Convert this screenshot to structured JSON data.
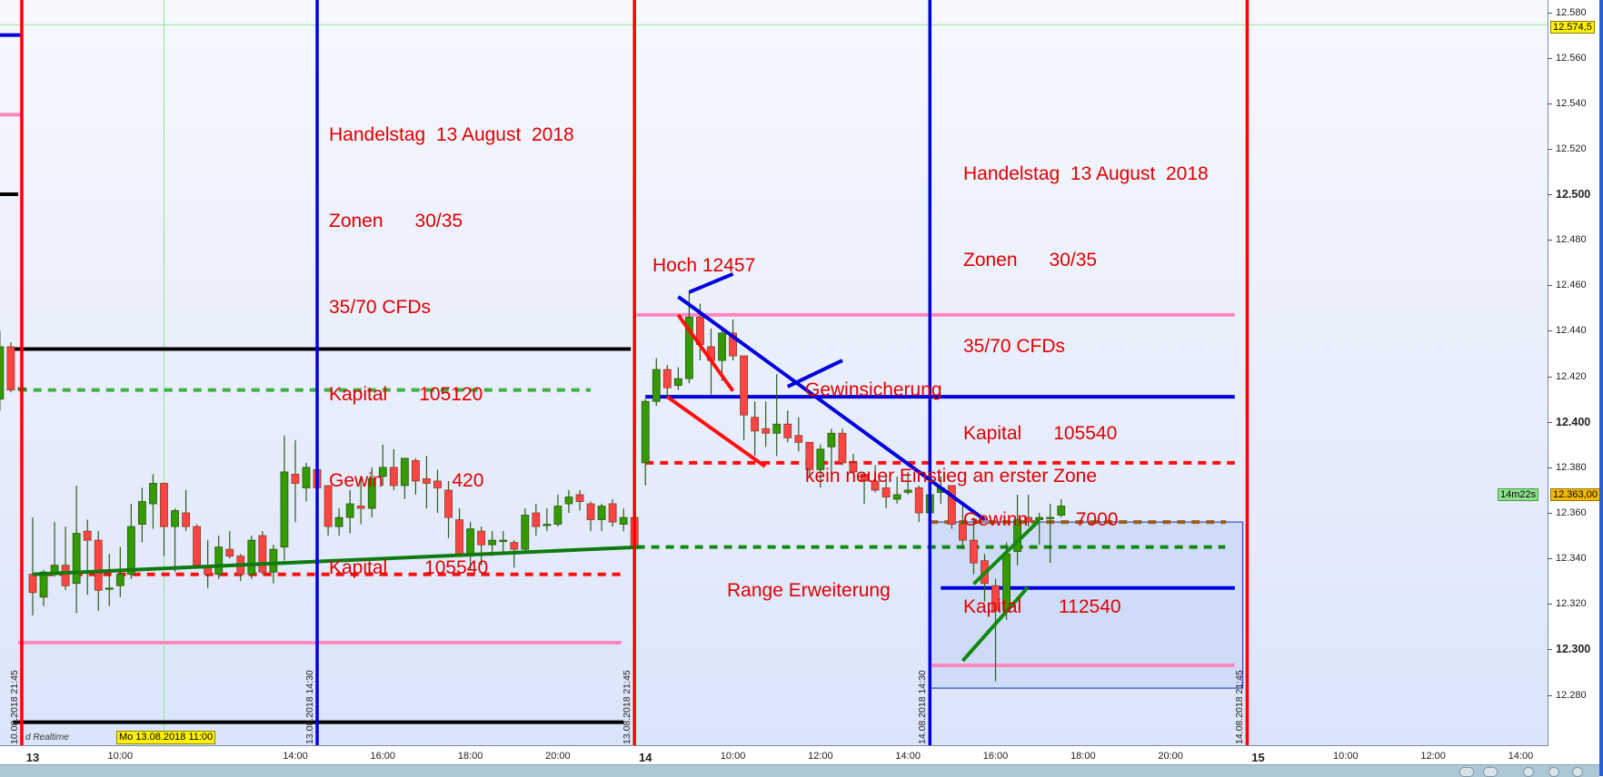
{
  "chart_data": {
    "type": "candlestick",
    "interval": "15m",
    "ylim": [
      12262,
      12585
    ],
    "price_ticks": [
      12280,
      12300,
      12320,
      12340,
      12360,
      12380,
      12400,
      12420,
      12440,
      12460,
      12480,
      12500,
      12520,
      12540,
      12560,
      12580
    ],
    "price_tick_labels": [
      "12.280",
      "12.300",
      "12.320",
      "12.340",
      "12.360",
      "12.380",
      "12.400",
      "12.420",
      "12.440",
      "12.460",
      "12.480",
      "12.500",
      "12.520",
      "12.540",
      "12.560",
      "12.580"
    ],
    "bold_ticks": [
      12300,
      12400,
      12500
    ],
    "time_ticks": [
      {
        "t": "13.08 08:00",
        "label": "13",
        "bold": true
      },
      {
        "t": "13.08 10:00",
        "label": "10:00"
      },
      {
        "t": "13.08 14:00",
        "label": "14:00"
      },
      {
        "t": "13.08 16:00",
        "label": "16:00"
      },
      {
        "t": "13.08 18:00",
        "label": "18:00"
      },
      {
        "t": "13.08 20:00",
        "label": "20:00"
      },
      {
        "t": "14.08 08:00",
        "label": "14",
        "bold": true
      },
      {
        "t": "14.08 10:00",
        "label": "10:00"
      },
      {
        "t": "14.08 12:00",
        "label": "12:00"
      },
      {
        "t": "14.08 14:00",
        "label": "14:00"
      },
      {
        "t": "14.08 16:00",
        "label": "16:00"
      },
      {
        "t": "14.08 18:00",
        "label": "18:00"
      },
      {
        "t": "14.08 20:00",
        "label": "20:00"
      },
      {
        "t": "15.08 08:00",
        "label": "15",
        "bold": true
      },
      {
        "t": "15.08 10:00",
        "label": "10:00"
      },
      {
        "t": "15.08 12:00",
        "label": "12:00"
      },
      {
        "t": "15.08 14:00",
        "label": "14:00"
      }
    ],
    "candles_columns": [
      "time",
      "open",
      "high",
      "low",
      "close"
    ],
    "candles": [
      [
        "10.08 21:15",
        12410,
        12440,
        12405,
        12433
      ],
      [
        "10.08 21:30",
        12433,
        12435,
        12413,
        12414
      ],
      [
        "10.08 21:45",
        12414,
        12416,
        12413,
        12415
      ],
      [
        "13.08 08:00",
        12333,
        12358,
        12315,
        12325
      ],
      [
        "13.08 08:15",
        12323,
        12335,
        12319,
        12334
      ],
      [
        "13.08 08:30",
        12333,
        12356,
        12332,
        12337
      ],
      [
        "13.08 08:45",
        12337,
        12354,
        12326,
        12328
      ],
      [
        "13.08 09:00",
        12329,
        12372,
        12316,
        12351
      ],
      [
        "13.08 09:15",
        12352,
        12357,
        12324,
        12348
      ],
      [
        "13.08 09:30",
        12348,
        12352,
        12317,
        12326
      ],
      [
        "13.08 09:45",
        12327,
        12342,
        12319,
        12327
      ],
      [
        "13.08 10:00",
        12328,
        12345,
        12323,
        12333
      ],
      [
        "13.08 10:15",
        12333,
        12364,
        12331,
        12354
      ],
      [
        "13.08 10:30",
        12355,
        12371,
        12347,
        12365
      ],
      [
        "13.08 10:45",
        12364,
        12377,
        12353,
        12373
      ],
      [
        "13.08 11:00",
        12373,
        12373,
        12341,
        12354
      ],
      [
        "13.08 11:15",
        12354,
        12362,
        12334,
        12361
      ],
      [
        "13.08 11:30",
        12360,
        12370,
        12352,
        12354
      ],
      [
        "13.08 11:45",
        12354,
        12355,
        12336,
        12337
      ],
      [
        "13.08 12:00",
        12336,
        12348,
        12327,
        12333
      ],
      [
        "13.08 12:15",
        12333,
        12350,
        12331,
        12345
      ],
      [
        "13.08 12:30",
        12344,
        12352,
        12340,
        12341
      ],
      [
        "13.08 12:45",
        12341,
        12342,
        12330,
        12333
      ],
      [
        "13.08 13:00",
        12333,
        12350,
        12331,
        12348
      ],
      [
        "13.08 13:15",
        12350,
        12352,
        12333,
        12334
      ],
      [
        "13.08 13:30",
        12334,
        12346,
        12329,
        12344
      ],
      [
        "13.08 13:45",
        12345,
        12394,
        12339,
        12378
      ],
      [
        "13.08 14:00",
        12377,
        12392,
        12356,
        12373
      ],
      [
        "13.08 14:15",
        12371,
        12382,
        12365,
        12380
      ],
      [
        "13.08 14:30",
        12379,
        12379,
        12370,
        12371
      ],
      [
        "13.08 14:45",
        12372,
        12372,
        12350,
        12354
      ],
      [
        "13.08 15:00",
        12354,
        12362,
        12350,
        12358
      ],
      [
        "13.08 15:15",
        12358,
        12370,
        12351,
        12364
      ],
      [
        "13.08 15:30",
        12363,
        12376,
        12355,
        12362
      ],
      [
        "13.08 15:45",
        12362,
        12380,
        12358,
        12375
      ],
      [
        "13.08 16:00",
        12376,
        12390,
        12372,
        12380
      ],
      [
        "13.08 16:15",
        12380,
        12388,
        12370,
        12372
      ],
      [
        "13.08 16:30",
        12372,
        12384,
        12366,
        12384
      ],
      [
        "13.08 16:45",
        12383,
        12384,
        12368,
        12374
      ],
      [
        "13.08 17:00",
        12375,
        12385,
        12362,
        12373
      ],
      [
        "13.08 17:15",
        12374,
        12379,
        12360,
        12371
      ],
      [
        "13.08 17:30",
        12370,
        12374,
        12349,
        12358
      ],
      [
        "13.08 17:45",
        12357,
        12362,
        12341,
        12342
      ],
      [
        "13.08 18:00",
        12341,
        12356,
        12335,
        12353
      ],
      [
        "13.08 18:15",
        12352,
        12354,
        12337,
        12346
      ],
      [
        "13.08 18:30",
        12346,
        12352,
        12341,
        12348
      ],
      [
        "13.08 18:45",
        12348,
        12352,
        12343,
        12348
      ],
      [
        "13.08 19:00",
        12347,
        12348,
        12336,
        12344
      ],
      [
        "13.08 19:15",
        12344,
        12362,
        12343,
        12359
      ],
      [
        "13.08 19:30",
        12360,
        12364,
        12350,
        12354
      ],
      [
        "13.08 19:45",
        12355,
        12362,
        12352,
        12355
      ],
      [
        "13.08 20:00",
        12355,
        12368,
        12354,
        12363
      ],
      [
        "13.08 20:15",
        12364,
        12370,
        12360,
        12367
      ],
      [
        "13.08 20:30",
        12368,
        12370,
        12361,
        12365
      ],
      [
        "13.08 20:45",
        12364,
        12365,
        12352,
        12357
      ],
      [
        "13.08 21:00",
        12357,
        12364,
        12352,
        12363
      ],
      [
        "13.08 21:15",
        12364,
        12366,
        12354,
        12356
      ],
      [
        "13.08 21:30",
        12355,
        12362,
        12352,
        12358
      ],
      [
        "13.08 21:45",
        12358,
        12358,
        12344,
        12345
      ],
      [
        "14.08 08:00",
        12382,
        12410,
        12372,
        12409
      ],
      [
        "14.08 08:15",
        12409,
        12428,
        12407,
        12423
      ],
      [
        "14.08 08:30",
        12423,
        12425,
        12411,
        12415
      ],
      [
        "14.08 08:45",
        12416,
        12424,
        12414,
        12419
      ],
      [
        "14.08 09:00",
        12419,
        12457,
        12417,
        12446
      ],
      [
        "14.08 09:15",
        12446,
        12452,
        12427,
        12434
      ],
      [
        "14.08 09:30",
        12433,
        12441,
        12412,
        12427
      ],
      [
        "14.08 09:45",
        12427,
        12441,
        12418,
        12439
      ],
      [
        "14.08 10:00",
        12439,
        12445,
        12427,
        12429
      ],
      [
        "14.08 10:15",
        12429,
        12429,
        12392,
        12403
      ],
      [
        "14.08 10:30",
        12402,
        12409,
        12385,
        12396
      ],
      [
        "14.08 10:45",
        12397,
        12409,
        12389,
        12395
      ],
      [
        "14.08 11:00",
        12395,
        12421,
        12385,
        12399
      ],
      [
        "14.08 11:15",
        12399,
        12405,
        12391,
        12393
      ],
      [
        "14.08 11:30",
        12394,
        12402,
        12387,
        12391
      ],
      [
        "14.08 11:45",
        12391,
        12391,
        12376,
        12379
      ],
      [
        "14.08 12:00",
        12379,
        12390,
        12371,
        12388
      ],
      [
        "14.08 12:15",
        12389,
        12397,
        12377,
        12395
      ],
      [
        "14.08 12:30",
        12395,
        12397,
        12381,
        12382
      ],
      [
        "14.08 12:45",
        12382,
        12386,
        12377,
        12378
      ],
      [
        "14.08 13:00",
        12377,
        12378,
        12364,
        12374
      ],
      [
        "14.08 13:15",
        12374,
        12381,
        12369,
        12370
      ],
      [
        "14.08 13:30",
        12371,
        12376,
        12362,
        12367
      ],
      [
        "14.08 13:45",
        12366,
        12376,
        12364,
        12368
      ],
      [
        "14.08 14:00",
        12369,
        12378,
        12368,
        12370
      ],
      [
        "14.08 14:15",
        12371,
        12372,
        12356,
        12360
      ],
      [
        "14.08 14:30",
        12360,
        12369,
        12359,
        12368
      ],
      [
        "14.08 14:45",
        12369,
        12376,
        12364,
        12371
      ],
      [
        "14.08 15:00",
        12372,
        12372,
        12353,
        12355
      ],
      [
        "14.08 15:15",
        12355,
        12363,
        12344,
        12348
      ],
      [
        "14.08 15:30",
        12348,
        12358,
        12333,
        12338
      ],
      [
        "14.08 15:45",
        12339,
        12342,
        12321,
        12329
      ],
      [
        "14.08 16:00",
        12328,
        12331,
        12286,
        12317
      ],
      [
        "14.08 16:15",
        12317,
        12347,
        12313,
        12342
      ],
      [
        "14.08 16:30",
        12343,
        12368,
        12337,
        12357
      ],
      [
        "14.08 16:45",
        12358,
        12368,
        12354,
        12356
      ],
      [
        "14.08 17:00",
        12357,
        12360,
        12346,
        12358
      ],
      [
        "14.08 17:15",
        12358,
        12364,
        12338,
        12358
      ],
      [
        "14.08 17:30",
        12359,
        12366,
        12358,
        12363
      ]
    ],
    "colors": {
      "up": "#339a00",
      "down": "#ff4444",
      "wick": "#2d5a1b"
    },
    "session_lines": [
      {
        "t": "10.08 21:45",
        "color": "#ff0000",
        "label": "10.08.2018 21:45"
      },
      {
        "t": "13.08 14:30",
        "color": "#0000dd",
        "label": "13.08.2018 14:30"
      },
      {
        "t": "13.08 21:45",
        "color": "#ff0000",
        "label": "13.08.2018 21:45"
      },
      {
        "t": "14.08 14:30",
        "color": "#0000dd",
        "label": "14.08.2018 14:30"
      },
      {
        "t": "14.08 21:45",
        "color": "#ff0000",
        "label": "14.08.2018 21:45"
      }
    ],
    "levels": [
      {
        "name": "blue-level-short",
        "price": 12570,
        "from": "10.08 21:00",
        "to": "10.08 21:45",
        "color": "#0000dd",
        "style": "solid"
      },
      {
        "name": "pink-level-short",
        "price": 12535,
        "from": "10.08 21:00",
        "to": "10.08 21:45",
        "color": "#ff88c0",
        "style": "solid"
      },
      {
        "name": "black-level-short",
        "price": 12500,
        "from": "10.08 21:00",
        "to": "10.08 21:40",
        "color": "#000000",
        "style": "solid"
      },
      {
        "name": "black-level-high",
        "price": 12432,
        "from": "10.08 21:30",
        "to": "13.08 21:40",
        "color": "#000000",
        "style": "solid"
      },
      {
        "name": "green-dashed-level",
        "price": 12414,
        "from": "10.08 21:41",
        "to": "13.08 20:45",
        "color": "#3cb040",
        "style": "dashed"
      },
      {
        "name": "red-dashed-level",
        "price": 12333,
        "from": "13.08 08:17",
        "to": "13.08 21:30",
        "color": "#ff1010",
        "style": "dashed"
      },
      {
        "name": "pink-level-low",
        "price": 12303,
        "from": "10.08 21:40",
        "to": "13.08 21:27",
        "color": "#ff88c0",
        "style": "solid"
      },
      {
        "name": "black-level-low",
        "price": 12268,
        "from": "10.08 21:33",
        "to": "13.08 21:30",
        "color": "#000000",
        "style": "solid"
      },
      {
        "name": "pink-level-day14",
        "price": 12447,
        "from": "13.08 21:48",
        "to": "14.08 21:28",
        "color": "#ff88c0",
        "style": "solid"
      },
      {
        "name": "blue-level-day14",
        "price": 12411,
        "from": "14.08 08:00",
        "to": "14.08 21:28",
        "color": "#0000dd",
        "style": "solid"
      },
      {
        "name": "red-dashed-level-day14",
        "price": 12382,
        "from": "14.08 08:00",
        "to": "14.08 21:28",
        "color": "#ff1010",
        "style": "dashed"
      },
      {
        "name": "brown-dashed-level",
        "price": 12356,
        "from": "14.08 14:30",
        "to": "14.08 21:16",
        "color": "#9a5a1a",
        "style": "dashed"
      },
      {
        "name": "green-dashed-level-day14",
        "price": 12345,
        "from": "13.08 21:48",
        "to": "14.08 21:15",
        "color": "#108a10",
        "style": "dashed"
      },
      {
        "name": "blue-level-low-day14",
        "price": 12327,
        "from": "14.08 14:45",
        "to": "14.08 21:28",
        "color": "#0000dd",
        "style": "solid"
      },
      {
        "name": "pink-level-low-day14",
        "price": 12293,
        "from": "14.08 14:30",
        "to": "14.08 21:28",
        "color": "#ff88c0",
        "style": "solid"
      }
    ],
    "range_box": {
      "from": "14.08 14:30",
      "to": "14.08 21:39",
      "top": 12356,
      "bottom": 12283,
      "fill": "#cfdcf7",
      "border": "#1030c0"
    },
    "trendlines": [
      {
        "name": "green-trendline-day13",
        "from": [
          "13.08 08:00",
          12333
        ],
        "to": [
          "13.08 21:54",
          12345
        ],
        "color": "#107a10"
      },
      {
        "name": "blue-downtrend-line",
        "from": [
          "14.08 08:45",
          12455
        ],
        "to": [
          "14.08 15:45",
          12357
        ],
        "color": "#0000dd"
      },
      {
        "name": "hoch-pointer-line",
        "from": [
          "14.08 09:00",
          12457
        ],
        "to": [
          "14.08 10:00",
          12465
        ],
        "color": "#0000dd"
      },
      {
        "name": "gewinsicherung-pointer-line",
        "from": [
          "14.08 11:15",
          12415.5
        ],
        "to": [
          "14.08 12:30",
          12427
        ],
        "color": "#0000dd"
      },
      {
        "name": "red-channel-line-upper",
        "from": [
          "14.08 08:45",
          12447
        ],
        "to": [
          "14.08 10:00",
          12413.6
        ],
        "color": "#ff1010"
      },
      {
        "name": "red-channel-line-lower",
        "from": [
          "14.08 08:30",
          12411
        ],
        "to": [
          "14.08 10:44",
          12380.4
        ],
        "color": "#ff1010"
      },
      {
        "name": "green-channel-line-upper",
        "from": [
          "14.08 15:30",
          12328.8
        ],
        "to": [
          "14.08 17:00",
          12356.7
        ],
        "color": "#108a10"
      },
      {
        "name": "green-channel-line-lower",
        "from": [
          "14.08 15:15",
          12295
        ],
        "to": [
          "14.08 16:44",
          12327.2
        ],
        "color": "#108a10"
      }
    ],
    "crosshair": {
      "t": "13.08 11:00",
      "price": 12574.5,
      "tooltip": "Mo 13.08.2018 11:00",
      "price_label": "12.574,5"
    },
    "last_price": {
      "price": 12363,
      "label": "12.363,00",
      "countdown": "14m22s"
    },
    "annotations": {
      "block1": [
        "Handelstag  13 August  2018",
        "Zonen      30/35",
        "35/70 CFDs",
        "Kapital      105120",
        "Gewin             420",
        "Kapital       105540"
      ],
      "block2": [
        "Handelstag  13 August  2018",
        "Zonen      30/35",
        "35/70 CFDs",
        "Kapital      105540",
        "Gewinn         7000",
        "Kapital       112540"
      ],
      "hoch": "Hoch 12457",
      "gewinsicherung": [
        "Gewinsicherung",
        "kein neuer Einstieg an erster Zone"
      ],
      "range": "Range Erweiterung"
    }
  },
  "status": {
    "realtime": "d Realtime"
  }
}
